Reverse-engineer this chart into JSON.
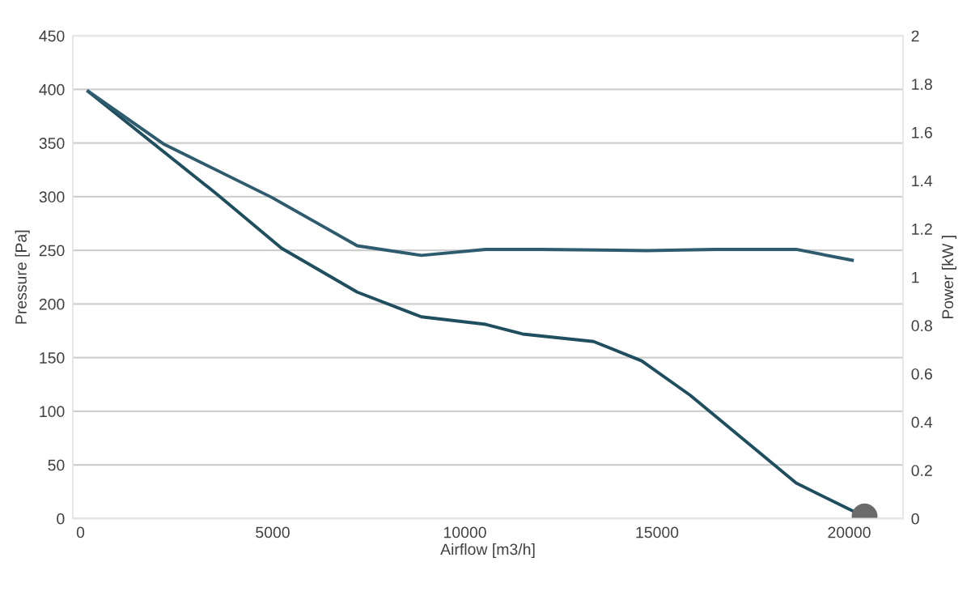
{
  "chart_data": {
    "type": "line",
    "xlabel": "Airflow [m3/h]",
    "ylabel": "Pressure [Pa]",
    "y2label": "Power [kW ]",
    "xlim": [
      -200,
      21400
    ],
    "xticks": [
      0,
      5000,
      10000,
      15000,
      20000
    ],
    "ylim": [
      0,
      450
    ],
    "yticks": [
      0,
      50,
      100,
      150,
      200,
      250,
      300,
      350,
      400,
      450
    ],
    "y2lim": [
      0,
      2
    ],
    "y2ticks": [
      0,
      0.2,
      0.4,
      0.6,
      0.8,
      1,
      1.2,
      1.4,
      1.6,
      1.8,
      2
    ],
    "grid": "y",
    "marker": "none",
    "line_style": "solid",
    "series": [
      {
        "color": "#1f4e5f",
        "x": [
          200,
          3560,
          5230,
          7200,
          8870,
          10540,
          11500,
          13350,
          14600,
          15860,
          17240,
          18620,
          20040,
          20400
        ],
        "values": [
          398,
          302,
          252,
          211,
          188,
          181,
          172,
          165,
          147,
          115,
          74,
          33,
          8,
          2
        ]
      },
      {
        "axis": "y2",
        "color": "#2e5c6e",
        "x": [
          200,
          2180,
          4980,
          6200,
          7200,
          8870,
          10540,
          12000,
          14730,
          16500,
          18620,
          20080
        ],
        "values": [
          1.77,
          1.55,
          1.33,
          1.22,
          1.13,
          1.09,
          1.115,
          1.115,
          1.11,
          1.115,
          1.115,
          1.07
        ]
      },
      {
        "type": "scatter",
        "color": "#6b6b6b",
        "marker": "circle",
        "x": [
          20400
        ],
        "values": [
          2
        ]
      }
    ]
  }
}
